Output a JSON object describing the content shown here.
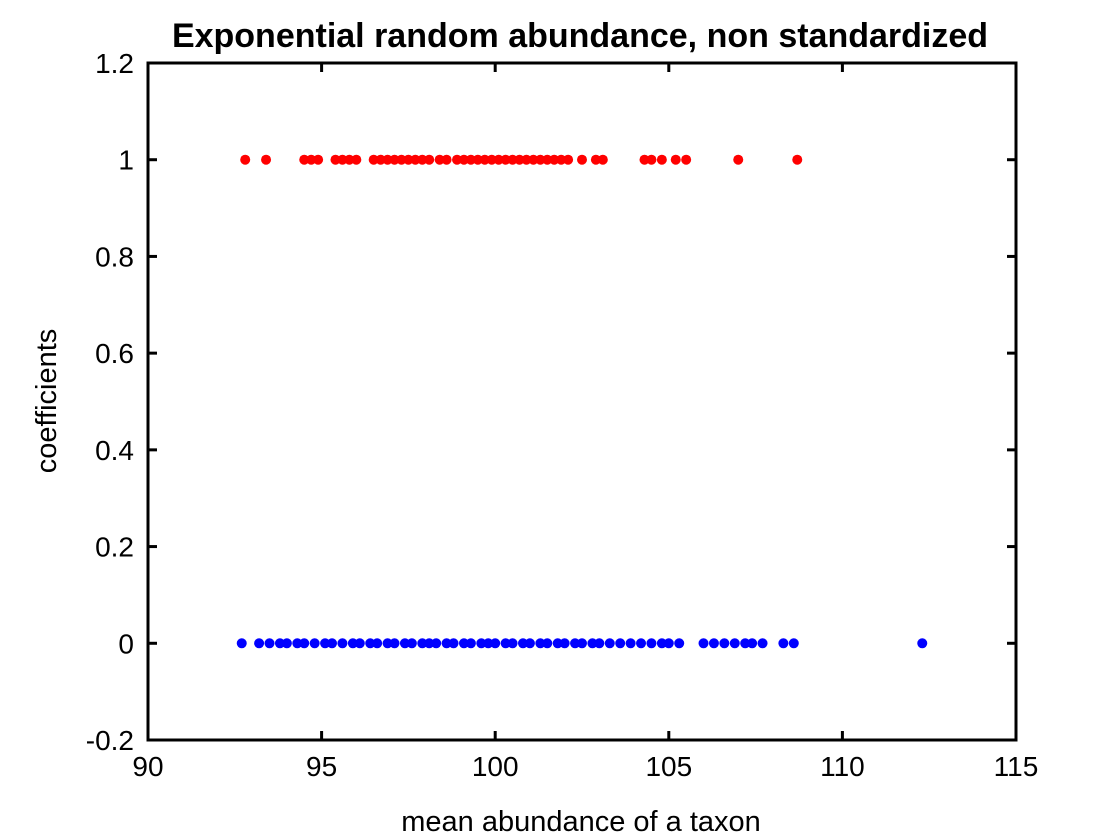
{
  "chart_data": {
    "type": "scatter",
    "title": "Exponential random abundance, non standardized",
    "xlabel": "mean abundance of a taxon",
    "ylabel": "coefficients",
    "xlim": [
      90,
      115
    ],
    "ylim": [
      -0.2,
      1.2
    ],
    "xticks": [
      "90",
      "95",
      "100",
      "105",
      "110",
      "115"
    ],
    "yticks": [
      "-0.2",
      "0",
      "0.2",
      "0.4",
      "0.6",
      "0.8",
      "1",
      "1.2"
    ],
    "grid": false,
    "series": [
      {
        "color": "#ff0000",
        "x": [
          92.8,
          93.4,
          94.5,
          94.7,
          94.9,
          95.4,
          95.6,
          95.8,
          96.0,
          96.5,
          96.7,
          96.9,
          97.1,
          97.3,
          97.5,
          97.7,
          97.9,
          98.1,
          98.4,
          98.6,
          98.9,
          99.1,
          99.3,
          99.5,
          99.7,
          99.9,
          100.1,
          100.3,
          100.5,
          100.7,
          100.9,
          101.1,
          101.3,
          101.5,
          101.7,
          101.9,
          102.1,
          102.5,
          102.9,
          103.1,
          104.3,
          104.5,
          104.8,
          105.2,
          105.5,
          107.0,
          108.7
        ],
        "y": [
          1,
          1,
          1,
          1,
          1,
          1,
          1,
          1,
          1,
          1,
          1,
          1,
          1,
          1,
          1,
          1,
          1,
          1,
          1,
          1,
          1,
          1,
          1,
          1,
          1,
          1,
          1,
          1,
          1,
          1,
          1,
          1,
          1,
          1,
          1,
          1,
          1,
          1,
          1,
          1,
          1,
          1,
          1,
          1,
          1,
          1,
          1
        ]
      },
      {
        "color": "#0000ff",
        "x": [
          92.7,
          93.2,
          93.5,
          93.8,
          94.0,
          94.3,
          94.5,
          94.8,
          95.1,
          95.3,
          95.6,
          95.9,
          96.1,
          96.4,
          96.6,
          96.9,
          97.1,
          97.4,
          97.6,
          97.9,
          98.1,
          98.3,
          98.6,
          98.8,
          99.1,
          99.3,
          99.6,
          99.8,
          100.0,
          100.3,
          100.5,
          100.8,
          101.0,
          101.3,
          101.5,
          101.8,
          102.0,
          102.3,
          102.5,
          102.8,
          103.0,
          103.3,
          103.6,
          103.9,
          104.2,
          104.5,
          104.8,
          105.0,
          105.3,
          106.0,
          106.3,
          106.6,
          106.9,
          107.2,
          107.4,
          107.7,
          108.3,
          108.6,
          112.3
        ],
        "y": [
          0,
          0,
          0,
          0,
          0,
          0,
          0,
          0,
          0,
          0,
          0,
          0,
          0,
          0,
          0,
          0,
          0,
          0,
          0,
          0,
          0,
          0,
          0,
          0,
          0,
          0,
          0,
          0,
          0,
          0,
          0,
          0,
          0,
          0,
          0,
          0,
          0,
          0,
          0,
          0,
          0,
          0,
          0,
          0,
          0,
          0,
          0,
          0,
          0,
          0,
          0,
          0,
          0,
          0,
          0,
          0,
          0,
          0,
          0
        ]
      }
    ]
  }
}
